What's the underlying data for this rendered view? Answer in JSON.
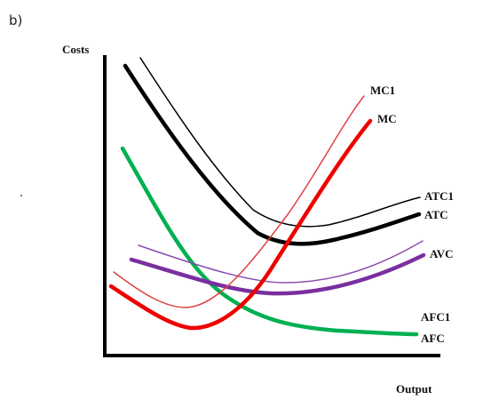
{
  "figure": {
    "part_label": "b)",
    "y_axis_label": "Costs",
    "x_axis_label": "Output"
  },
  "curves": [
    {
      "id": "mc1",
      "label": "MC1",
      "color": "#e04040"
    },
    {
      "id": "mc",
      "label": "MC",
      "color": "#ee0000"
    },
    {
      "id": "atc1",
      "label": "ATC1",
      "color": "#000000"
    },
    {
      "id": "atc",
      "label": "ATC",
      "color": "#000000"
    },
    {
      "id": "avc",
      "label": "AVC",
      "color": "#7a2fa0"
    },
    {
      "id": "afc1",
      "label": "AFC1",
      "color": "#00b050"
    },
    {
      "id": "afc",
      "label": "AFC",
      "color": "#00b050"
    }
  ],
  "colors": {
    "axis": "#000000",
    "mc1": "#e04040",
    "mc": "#ee0000",
    "atc": "#000000",
    "avc1": "#8a4bb0",
    "avc": "#7a2fa0",
    "afc": "#00b050"
  }
}
